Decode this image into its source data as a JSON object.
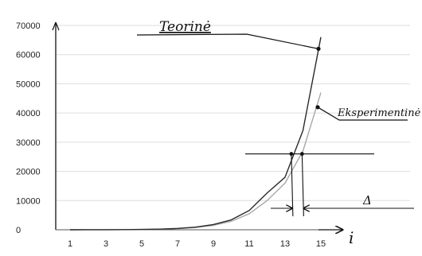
{
  "chart_data": {
    "type": "line",
    "title": "",
    "xlabel": "i",
    "ylabel": "",
    "x_ticks": [
      1,
      3,
      5,
      7,
      9,
      11,
      13,
      15
    ],
    "y_ticks": [
      0,
      10000,
      20000,
      30000,
      40000,
      50000,
      60000,
      70000
    ],
    "xlim": [
      0,
      16
    ],
    "ylim": [
      0,
      70000
    ],
    "grid": "horizontal",
    "series": [
      {
        "name": "Teorinė",
        "color": "#2a2a2a",
        "x": [
          1,
          2,
          3,
          4,
          5,
          6,
          7,
          8,
          9,
          10,
          11,
          12,
          13,
          14,
          15
        ],
        "y": [
          0,
          10,
          30,
          60,
          120,
          230,
          460,
          900,
          1800,
          3400,
          6600,
          12600,
          18000,
          34000,
          66000
        ]
      },
      {
        "name": "Eksperimentinė",
        "color": "#a8a8a8",
        "x": [
          1,
          2,
          3,
          4,
          5,
          6,
          7,
          8,
          9,
          10,
          11,
          12,
          13,
          14,
          15
        ],
        "y": [
          0,
          10,
          25,
          50,
          100,
          200,
          380,
          760,
          1500,
          2900,
          5500,
          10000,
          16000,
          27000,
          47000
        ]
      }
    ],
    "annotations": {
      "theory_label": "Teorinė",
      "experiment_label": "Eksperimentinė",
      "delta_label": "Δ",
      "level_y": 26000,
      "theory_cross_x": 13.35,
      "experiment_cross_x": 13.95
    }
  }
}
